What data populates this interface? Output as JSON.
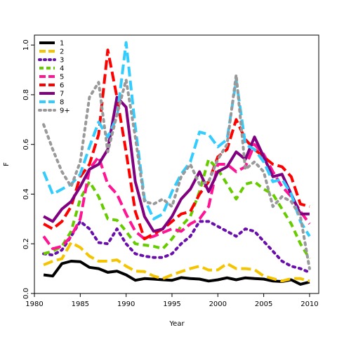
{
  "chart_data": {
    "type": "line",
    "xlabel": "Year",
    "ylabel": "F",
    "xlim": [
      1980,
      2011
    ],
    "ylim": [
      0,
      1.04
    ],
    "xticks": [
      "1980",
      "1985",
      "1990",
      "1995",
      "2000",
      "2005",
      "2010"
    ],
    "yticks": [
      "0.0",
      "0.2",
      "0.4",
      "0.6",
      "0.8",
      "1.0"
    ],
    "grid": false,
    "legend_position": "top-left",
    "x": [
      1981,
      1982,
      1983,
      1984,
      1985,
      1986,
      1987,
      1988,
      1989,
      1990,
      1991,
      1992,
      1993,
      1994,
      1995,
      1996,
      1997,
      1998,
      1999,
      2000,
      2001,
      2002,
      2003,
      2004,
      2005,
      2006,
      2007,
      2008,
      2009,
      2010
    ],
    "series": [
      {
        "name": "1",
        "color": "#000000",
        "dash": "solid",
        "values": [
          0.075,
          0.07,
          0.12,
          0.13,
          0.128,
          0.105,
          0.1,
          0.085,
          0.09,
          0.075,
          0.053,
          0.06,
          0.058,
          0.055,
          0.053,
          0.064,
          0.06,
          0.058,
          0.05,
          0.055,
          0.063,
          0.055,
          0.063,
          0.06,
          0.058,
          0.05,
          0.048,
          0.055,
          0.037,
          0.046
        ]
      },
      {
        "name": "2",
        "color": "#f5c400",
        "dash": "longdash",
        "values": [
          0.115,
          0.13,
          0.14,
          0.205,
          0.185,
          0.15,
          0.13,
          0.13,
          0.135,
          0.11,
          0.09,
          0.088,
          0.07,
          0.06,
          0.075,
          0.088,
          0.1,
          0.11,
          0.094,
          0.095,
          0.12,
          0.1,
          0.1,
          0.096,
          0.07,
          0.06,
          0.05,
          0.06,
          0.06,
          0.05
        ]
      },
      {
        "name": "3",
        "color": "#6a0dad",
        "dash": "dot",
        "values": [
          0.16,
          0.155,
          0.175,
          0.23,
          0.29,
          0.26,
          0.205,
          0.2,
          0.26,
          0.2,
          0.16,
          0.15,
          0.145,
          0.145,
          0.16,
          0.2,
          0.23,
          0.29,
          0.29,
          0.27,
          0.25,
          0.23,
          0.26,
          0.25,
          0.21,
          0.17,
          0.13,
          0.11,
          0.1,
          0.085
        ]
      },
      {
        "name": "4",
        "color": "#66cc00",
        "dash": "dash",
        "values": [
          0.16,
          0.17,
          0.19,
          0.25,
          0.38,
          0.45,
          0.39,
          0.3,
          0.295,
          0.25,
          0.2,
          0.195,
          0.19,
          0.18,
          0.22,
          0.27,
          0.31,
          0.41,
          0.54,
          0.5,
          0.44,
          0.38,
          0.44,
          0.45,
          0.42,
          0.4,
          0.34,
          0.28,
          0.2,
          0.14
        ]
      },
      {
        "name": "5",
        "color": "#ff1493",
        "dash": "longdash",
        "values": [
          0.23,
          0.18,
          0.19,
          0.23,
          0.3,
          0.5,
          0.55,
          0.44,
          0.4,
          0.32,
          0.25,
          0.22,
          0.23,
          0.245,
          0.26,
          0.25,
          0.28,
          0.3,
          0.35,
          0.52,
          0.52,
          0.49,
          0.51,
          0.6,
          0.56,
          0.49,
          0.43,
          0.39,
          0.33,
          0.28
        ]
      },
      {
        "name": "6",
        "color": "#ff0000",
        "dash": "longdash",
        "values": [
          0.28,
          0.26,
          0.29,
          0.35,
          0.47,
          0.52,
          0.64,
          0.98,
          0.79,
          0.57,
          0.33,
          0.22,
          0.24,
          0.26,
          0.29,
          0.32,
          0.33,
          0.4,
          0.45,
          0.55,
          0.58,
          0.7,
          0.62,
          0.58,
          0.55,
          0.52,
          0.51,
          0.47,
          0.36,
          0.35
        ]
      },
      {
        "name": "7",
        "color": "#800080",
        "dash": "solid",
        "values": [
          0.31,
          0.29,
          0.34,
          0.37,
          0.43,
          0.5,
          0.52,
          0.58,
          0.79,
          0.75,
          0.45,
          0.31,
          0.25,
          0.26,
          0.31,
          0.38,
          0.42,
          0.49,
          0.41,
          0.49,
          0.51,
          0.57,
          0.54,
          0.63,
          0.55,
          0.47,
          0.48,
          0.4,
          0.32,
          0.32
        ]
      },
      {
        "name": "8",
        "color": "#33ccff",
        "dash": "longdash",
        "values": [
          0.49,
          0.4,
          0.42,
          0.44,
          0.48,
          0.59,
          0.69,
          0.63,
          0.71,
          1.01,
          0.67,
          0.38,
          0.3,
          0.32,
          0.41,
          0.48,
          0.53,
          0.65,
          0.64,
          0.59,
          0.62,
          0.86,
          0.6,
          0.58,
          0.53,
          0.45,
          0.46,
          0.4,
          0.29,
          0.23
        ]
      },
      {
        "name": "9+",
        "color": "#999999",
        "dash": "dot",
        "values": [
          0.68,
          0.58,
          0.49,
          0.43,
          0.53,
          0.79,
          0.85,
          0.57,
          0.72,
          0.86,
          0.63,
          0.37,
          0.36,
          0.38,
          0.35,
          0.47,
          0.52,
          0.44,
          0.45,
          0.54,
          0.6,
          0.88,
          0.5,
          0.53,
          0.49,
          0.35,
          0.39,
          0.37,
          0.31,
          0.1
        ]
      }
    ]
  }
}
